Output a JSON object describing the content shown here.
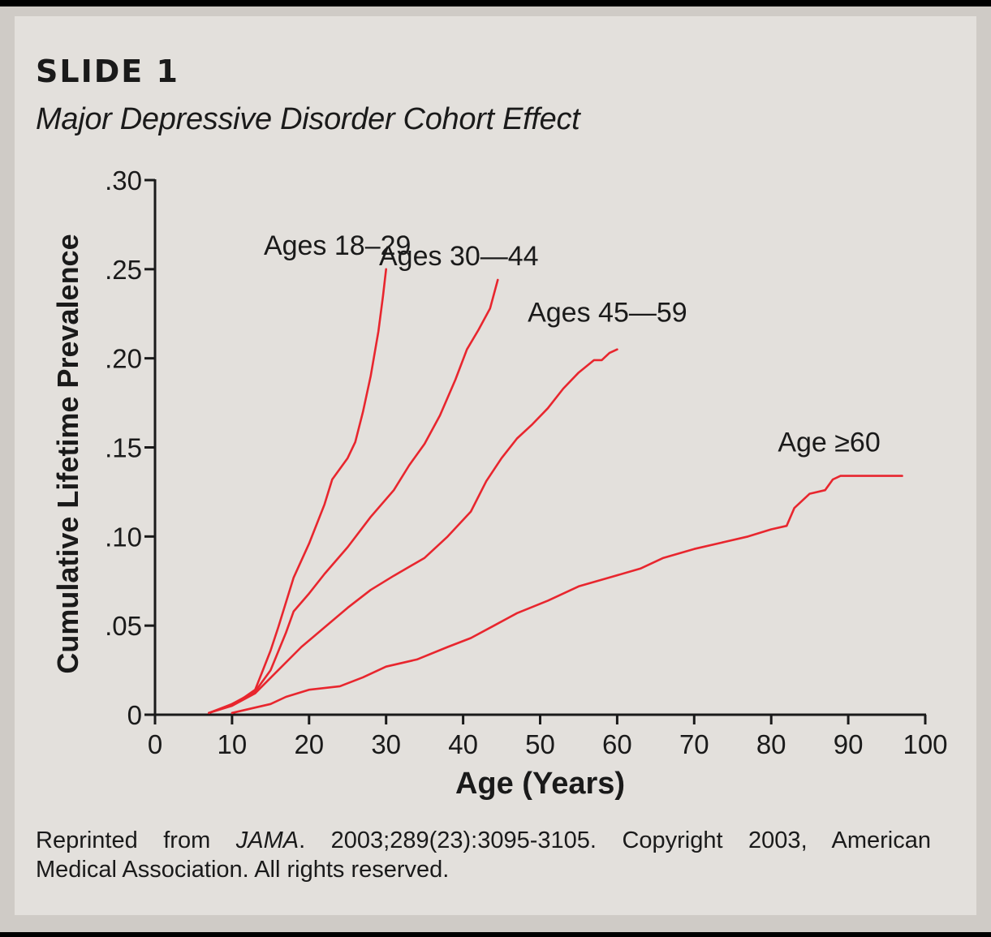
{
  "slide_label": "SLIDE 1",
  "subtitle": "Major Depressive Disorder Cohort Effect",
  "caption": {
    "prefix": "Reprinted from ",
    "journal": "JAMA",
    "rest_line1": ". 2003;289(23):3095-3105. Copyright 2003, American",
    "line2": "Medical Association. All rights reserved."
  },
  "colors": {
    "line": "#e8262e",
    "axis": "#1a1a1a",
    "card": "#e3e0dc"
  },
  "chart_data": {
    "type": "line",
    "title": "Major Depressive Disorder Cohort Effect",
    "xlabel": "Age (Years)",
    "ylabel": "Cumulative Lifetime Prevalence",
    "xlim": [
      0,
      100
    ],
    "ylim": [
      0,
      0.3
    ],
    "x_ticks": [
      0,
      10,
      20,
      30,
      40,
      50,
      60,
      70,
      80,
      90,
      100
    ],
    "x_tick_labels": [
      "0",
      "10",
      "20",
      "30",
      "40",
      "50",
      "60",
      "70",
      "80",
      "90",
      "100"
    ],
    "y_ticks": [
      0,
      0.05,
      0.1,
      0.15,
      0.2,
      0.25,
      0.3
    ],
    "y_tick_labels": [
      "0",
      ".05",
      ".10",
      ".15",
      ".20",
      ".25",
      ".30"
    ],
    "grid": false,
    "series": [
      {
        "name": "Ages 18–29",
        "label_anchor": [
          0,
          0.253
        ],
        "points": [
          [
            7,
            0.001
          ],
          [
            9,
            0.004
          ],
          [
            11,
            0.008
          ],
          [
            13,
            0.014
          ],
          [
            14,
            0.025
          ],
          [
            15,
            0.036
          ],
          [
            16,
            0.049
          ],
          [
            17,
            0.063
          ],
          [
            18,
            0.077
          ],
          [
            20,
            0.096
          ],
          [
            22,
            0.118
          ],
          [
            23,
            0.132
          ],
          [
            25,
            0.144
          ],
          [
            26,
            0.153
          ],
          [
            27,
            0.17
          ],
          [
            28,
            0.19
          ],
          [
            29,
            0.215
          ],
          [
            29.6,
            0.235
          ],
          [
            30,
            0.25
          ]
        ]
      },
      {
        "name": "Ages 30—44",
        "label_anchor": [
          0,
          0.25
        ],
        "points": [
          [
            7,
            0.001
          ],
          [
            10,
            0.006
          ],
          [
            13,
            0.013
          ],
          [
            15,
            0.025
          ],
          [
            17,
            0.046
          ],
          [
            18,
            0.058
          ],
          [
            20,
            0.068
          ],
          [
            22,
            0.079
          ],
          [
            25,
            0.094
          ],
          [
            28,
            0.111
          ],
          [
            31,
            0.126
          ],
          [
            33,
            0.14
          ],
          [
            35,
            0.152
          ],
          [
            37,
            0.168
          ],
          [
            39,
            0.188
          ],
          [
            40.5,
            0.205
          ],
          [
            42,
            0.216
          ],
          [
            43.5,
            0.228
          ],
          [
            44.5,
            0.244
          ]
        ]
      },
      {
        "name": "Ages 45—59",
        "label_anchor": [
          0,
          0.21
        ],
        "points": [
          [
            7,
            0.001
          ],
          [
            10,
            0.005
          ],
          [
            13,
            0.012
          ],
          [
            16,
            0.025
          ],
          [
            19,
            0.038
          ],
          [
            22,
            0.049
          ],
          [
            25,
            0.06
          ],
          [
            28,
            0.07
          ],
          [
            31,
            0.078
          ],
          [
            35,
            0.088
          ],
          [
            38,
            0.1
          ],
          [
            41,
            0.114
          ],
          [
            43,
            0.131
          ],
          [
            45,
            0.144
          ],
          [
            47,
            0.155
          ],
          [
            49,
            0.163
          ],
          [
            51,
            0.172
          ],
          [
            53,
            0.183
          ],
          [
            55,
            0.192
          ],
          [
            57,
            0.199
          ],
          [
            58,
            0.199
          ],
          [
            59,
            0.203
          ],
          [
            60,
            0.205
          ]
        ]
      },
      {
        "name": "Age ≥60",
        "label_anchor": [
          0,
          0.147
        ],
        "points": [
          [
            10,
            0.001
          ],
          [
            13,
            0.004
          ],
          [
            15,
            0.006
          ],
          [
            17,
            0.01
          ],
          [
            20,
            0.014
          ],
          [
            24,
            0.016
          ],
          [
            27,
            0.021
          ],
          [
            30,
            0.027
          ],
          [
            34,
            0.031
          ],
          [
            38,
            0.038
          ],
          [
            41,
            0.043
          ],
          [
            44,
            0.05
          ],
          [
            47,
            0.057
          ],
          [
            51,
            0.064
          ],
          [
            55,
            0.072
          ],
          [
            59,
            0.077
          ],
          [
            63,
            0.082
          ],
          [
            66,
            0.088
          ],
          [
            70,
            0.093
          ],
          [
            74,
            0.097
          ],
          [
            77,
            0.1
          ],
          [
            80,
            0.104
          ],
          [
            82,
            0.106
          ],
          [
            83,
            0.116
          ],
          [
            85,
            0.124
          ],
          [
            87,
            0.126
          ],
          [
            88,
            0.132
          ],
          [
            89,
            0.134
          ],
          [
            92,
            0.134
          ],
          [
            97,
            0.134
          ]
        ]
      }
    ]
  }
}
